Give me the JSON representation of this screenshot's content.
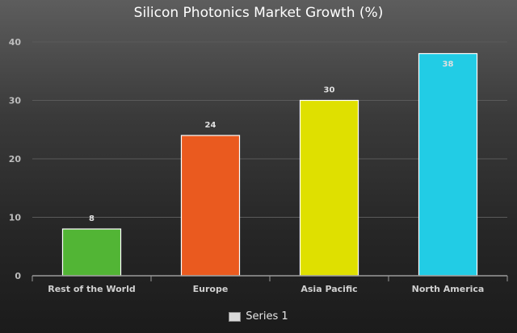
{
  "chart_data": {
    "type": "bar",
    "title": "Silicon Photonics Market Growth (%)",
    "xlabel": "",
    "ylabel": "",
    "categories": [
      "Rest of the World",
      "Europe",
      "Asia Pacific",
      "North America"
    ],
    "series": [
      {
        "name": "Series 1",
        "values": [
          8,
          24,
          30,
          38
        ]
      }
    ],
    "bar_colors": [
      "#52b535",
      "#ea5a1f",
      "#dfe000",
      "#22cce5"
    ],
    "yticks": [
      "0",
      "10",
      "20",
      "30",
      "40"
    ],
    "ylim": [
      0,
      40
    ],
    "grid": true,
    "legend_position": "bottom",
    "legend_swatch_color": "#d9d9d9"
  }
}
